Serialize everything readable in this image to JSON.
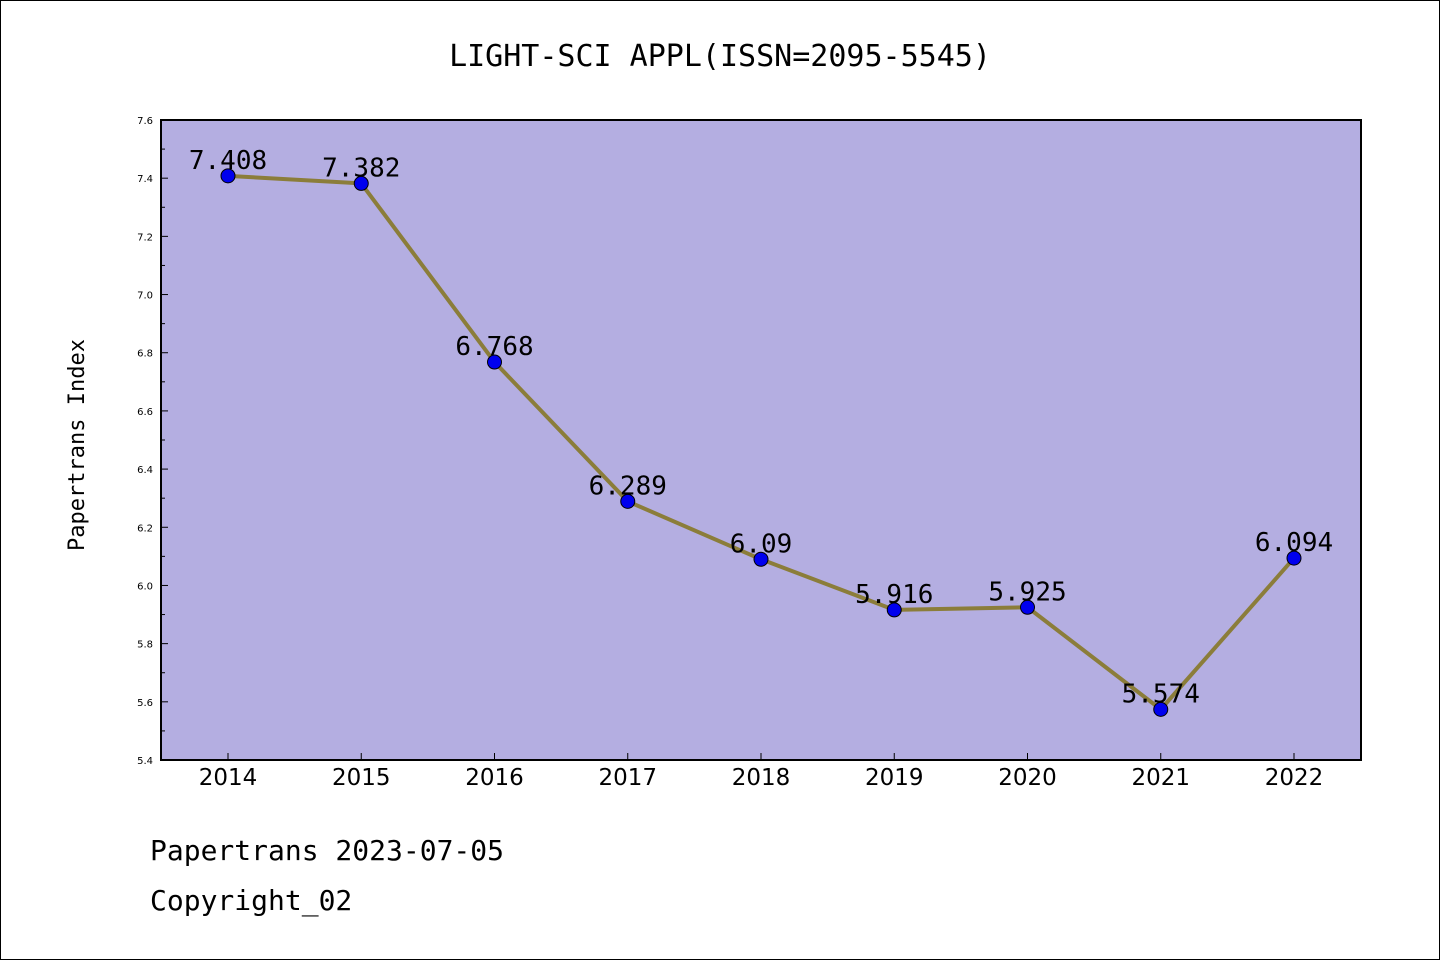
{
  "chart_data": {
    "type": "line",
    "title": "LIGHT-SCI APPL(ISSN=2095-5545)",
    "xlabel": "",
    "ylabel": "Papertrans Index",
    "categories": [
      "2014",
      "2015",
      "2016",
      "2017",
      "2018",
      "2019",
      "2020",
      "2021",
      "2022"
    ],
    "values": [
      7.408,
      7.382,
      6.768,
      6.289,
      6.09,
      5.916,
      5.925,
      5.574,
      6.094
    ],
    "value_labels": [
      "7.408",
      "7.382",
      "6.768",
      "6.289",
      "6.09",
      "5.916",
      "5.925",
      "5.574",
      "6.094"
    ],
    "ylim": [
      5.4,
      7.6
    ],
    "yticks": [
      "5.4",
      "5.6",
      "5.8",
      "6.0",
      "6.2",
      "6.4",
      "6.6",
      "6.8",
      "7.0",
      "7.2",
      "7.4",
      "7.6"
    ],
    "grid": false,
    "colors": {
      "plot_background": "#b4aee1",
      "line": "#8b7d3a",
      "marker": "#0000ee"
    }
  },
  "footer": {
    "line1": "Papertrans 2023-07-05",
    "line2": "Copyright_02"
  }
}
